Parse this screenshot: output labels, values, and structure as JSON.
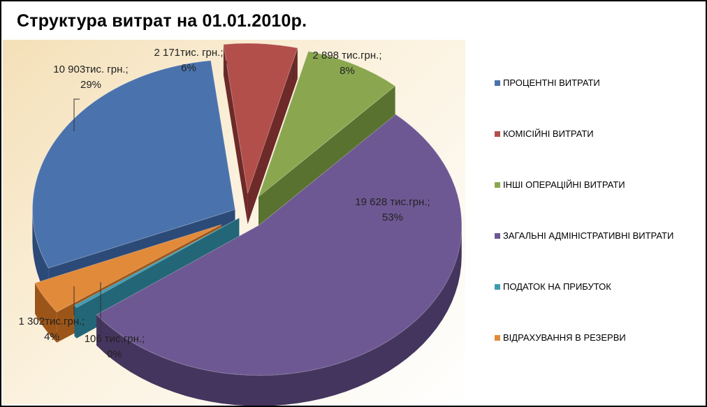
{
  "chart_data": {
    "type": "pie",
    "title": "Структура витрат на 01.01.2010р.",
    "unit": "тис.грн.",
    "slices": [
      {
        "name": "ПРОЦЕНТНІ ВИТРАТИ",
        "value": 10903,
        "percent": 29,
        "label_value": "10 903тис. грн.;",
        "label_pct": "29%",
        "color": "#4a72ac",
        "dark": "#2c4a78"
      },
      {
        "name": "КОМІСІЙНІ ВИТРАТИ",
        "value": 2171,
        "percent": 6,
        "label_value": "2 171тис. грн.;",
        "label_pct": "6%",
        "color": "#b24f4b",
        "dark": "#6e2a28"
      },
      {
        "name": "ІНШІ ОПЕРАЦІЙНІ ВИТРАТИ",
        "value": 2898,
        "percent": 8,
        "label_value": "2 898 тис.грн.;",
        "label_pct": "8%",
        "color": "#8aa74f",
        "dark": "#5a7230"
      },
      {
        "name": "ЗАГАЛЬНІ АДМІНІСТРАТИВНІ ВИТРАТИ",
        "value": 19628,
        "percent": 53,
        "label_value": "19 628 тис.грн.;",
        "label_pct": "53%",
        "color": "#6e5893",
        "dark": "#44355e"
      },
      {
        "name": "ПОДАТОК НА ПРИБУТОК",
        "value": 106,
        "percent": 0,
        "label_value": "106 тис.грн.;",
        "label_pct": "0%",
        "color": "#3f9bb3",
        "dark": "#226677"
      },
      {
        "name": "ВІДРАХУВАННЯ В РЕЗЕРВИ",
        "value": 1302,
        "percent": 4,
        "label_value": "1 302тис.грн.;",
        "label_pct": "4%",
        "color": "#e18a3a",
        "dark": "#9c5518"
      }
    ],
    "legend_position": "right"
  }
}
